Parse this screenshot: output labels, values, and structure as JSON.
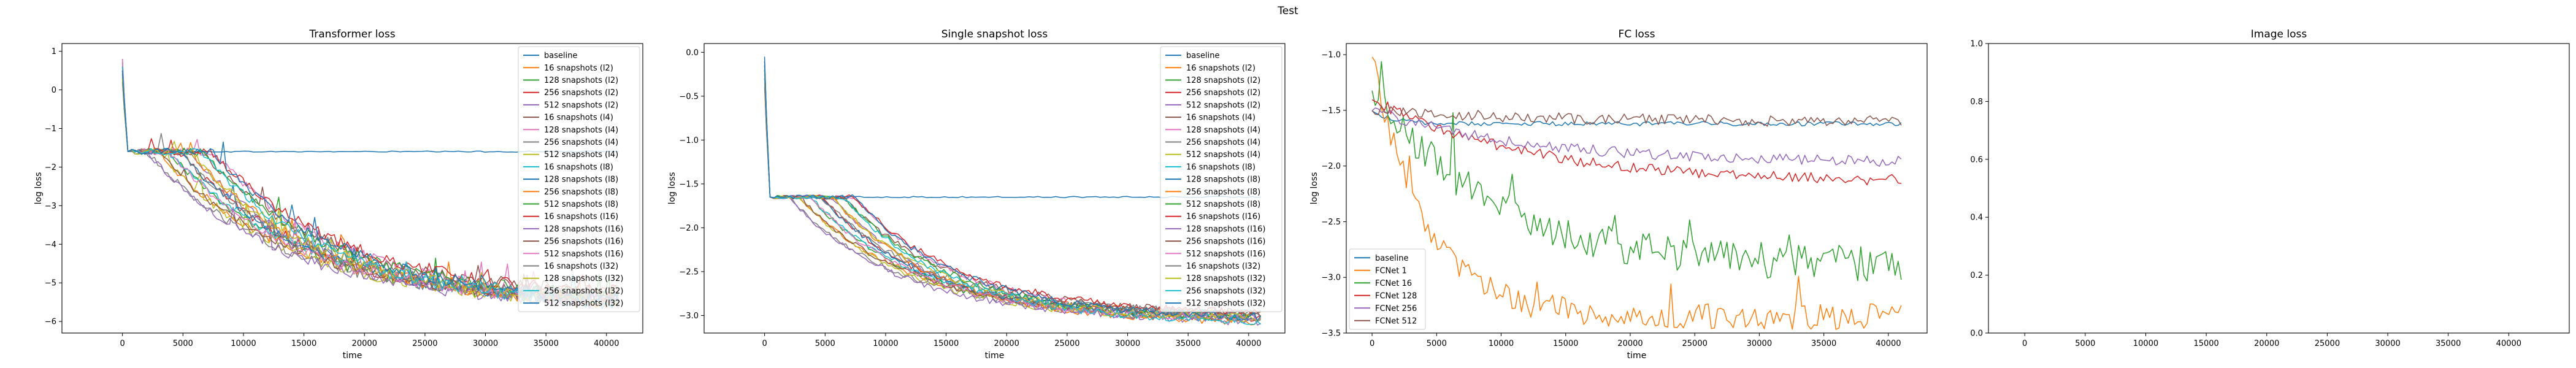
{
  "figure": {
    "suptitle": "Test"
  },
  "colors": {
    "tab10": [
      "#1f77b4",
      "#ff7f0e",
      "#2ca02c",
      "#d62728",
      "#9467bd",
      "#8c564b",
      "#e377c2",
      "#7f7f7f",
      "#bcbd22",
      "#17becf"
    ]
  },
  "chart_data": [
    {
      "type": "line",
      "title": "Transformer loss",
      "xlabel": "time",
      "ylabel": "log loss",
      "xlim": [
        -5000,
        43000
      ],
      "ylim": [
        -6.3,
        1.2
      ],
      "xticks": [
        0,
        5000,
        10000,
        15000,
        20000,
        25000,
        30000,
        35000,
        40000
      ],
      "yticks": [
        -6,
        -5,
        -4,
        -3,
        -2,
        -1,
        0,
        1
      ],
      "ytick_labels": [
        "−6",
        "−5",
        "−4",
        "−3",
        "−2",
        "−1",
        "0",
        "1"
      ],
      "legend_loc": "upper-right",
      "grid": false,
      "note": "All series start near 0.8 at t=0, drop to about -1.6 by t~500; baseline stays flat near -1.6; snapshot runs decay toward about -5.6 by t=40000 with noise.",
      "series": [
        {
          "name": "baseline",
          "color_index": 0,
          "start": 0.8,
          "plateau": -1.6,
          "end": -1.6
        },
        {
          "name": "16 snapshots (l2)",
          "color_index": 1,
          "start": 0.7,
          "plateau": -1.6,
          "end": -5.5
        },
        {
          "name": "128 snapshots (l2)",
          "color_index": 2,
          "start": 0.6,
          "plateau": -1.6,
          "end": -5.6
        },
        {
          "name": "256 snapshots (l2)",
          "color_index": 3,
          "start": 0.5,
          "plateau": -1.6,
          "end": -5.6
        },
        {
          "name": "512 snapshots (l2)",
          "color_index": 4,
          "start": 0.4,
          "plateau": -1.6,
          "end": -5.7
        },
        {
          "name": "16 snapshots (l4)",
          "color_index": 5,
          "start": 0.3,
          "plateau": -1.6,
          "end": -5.4
        },
        {
          "name": "128 snapshots (l4)",
          "color_index": 6,
          "start": 0.8,
          "plateau": -1.6,
          "end": -5.6
        },
        {
          "name": "256 snapshots (l4)",
          "color_index": 7,
          "start": 0.2,
          "plateau": -1.6,
          "end": -5.5
        },
        {
          "name": "512 snapshots (l4)",
          "color_index": 8,
          "start": 0.6,
          "plateau": -1.6,
          "end": -5.6
        },
        {
          "name": "16 snapshots (l8)",
          "color_index": 9,
          "start": 0.5,
          "plateau": -1.6,
          "end": -5.5
        },
        {
          "name": "128 snapshots (l8)",
          "color_index": 0,
          "start": 0.7,
          "plateau": -1.6,
          "end": -5.6
        },
        {
          "name": "256 snapshots (l8)",
          "color_index": 1,
          "start": 0.4,
          "plateau": -1.6,
          "end": -5.7
        },
        {
          "name": "512 snapshots (l8)",
          "color_index": 2,
          "start": 0.3,
          "plateau": -1.6,
          "end": -5.5
        },
        {
          "name": "16 snapshots (l16)",
          "color_index": 3,
          "start": 0.6,
          "plateau": -1.6,
          "end": -5.4
        },
        {
          "name": "128 snapshots (l16)",
          "color_index": 4,
          "start": 0.5,
          "plateau": -1.6,
          "end": -5.6
        },
        {
          "name": "256 snapshots (l16)",
          "color_index": 5,
          "start": 0.2,
          "plateau": -1.6,
          "end": -5.5
        },
        {
          "name": "512 snapshots (l16)",
          "color_index": 6,
          "start": 0.7,
          "plateau": -1.6,
          "end": -5.6
        },
        {
          "name": "16 snapshots (l32)",
          "color_index": 7,
          "start": 0.4,
          "plateau": -1.6,
          "end": -5.5
        },
        {
          "name": "128 snapshots (l32)",
          "color_index": 8,
          "start": 0.3,
          "plateau": -1.6,
          "end": -5.6
        },
        {
          "name": "256 snapshots (l32)",
          "color_index": 9,
          "start": 0.6,
          "plateau": -1.6,
          "end": -5.7
        },
        {
          "name": "512 snapshots (l32)",
          "color_index": 0,
          "start": 0.5,
          "plateau": -1.6,
          "end": -5.6
        }
      ]
    },
    {
      "type": "line",
      "title": "Single snapshot loss",
      "xlabel": "time",
      "ylabel": "log loss",
      "xlim": [
        -5000,
        43000
      ],
      "ylim": [
        -3.2,
        0.1
      ],
      "xticks": [
        0,
        5000,
        10000,
        15000,
        20000,
        25000,
        30000,
        35000,
        40000
      ],
      "yticks": [
        -3.0,
        -2.5,
        -2.0,
        -1.5,
        -1.0,
        -0.5,
        0.0
      ],
      "ytick_labels": [
        "−3.0",
        "−2.5",
        "−2.0",
        "−1.5",
        "−1.0",
        "−0.5",
        "0.0"
      ],
      "legend_loc": "upper-right",
      "grid": false,
      "note": "Series start near 0.0 at t=0, drop to about -1.65 by t~500; baseline stays flat near -1.65; snapshot runs decay toward about -3.05 by t=40000.",
      "series": [
        {
          "name": "baseline",
          "color_index": 0,
          "start": -0.05,
          "plateau": -1.65,
          "end": -1.65
        },
        {
          "name": "16 snapshots (l2)",
          "color_index": 1,
          "start": -0.1,
          "plateau": -1.65,
          "end": -3.0
        },
        {
          "name": "128 snapshots (l2)",
          "color_index": 2,
          "start": -0.2,
          "plateau": -1.65,
          "end": -3.05
        },
        {
          "name": "256 snapshots (l2)",
          "color_index": 3,
          "start": -0.3,
          "plateau": -1.65,
          "end": -3.05
        },
        {
          "name": "512 snapshots (l2)",
          "color_index": 4,
          "start": -0.15,
          "plateau": -1.65,
          "end": -3.1
        },
        {
          "name": "16 snapshots (l4)",
          "color_index": 5,
          "start": -0.4,
          "plateau": -1.65,
          "end": -3.0
        },
        {
          "name": "128 snapshots (l4)",
          "color_index": 6,
          "start": -0.1,
          "plateau": -1.65,
          "end": -3.05
        },
        {
          "name": "256 snapshots (l4)",
          "color_index": 7,
          "start": -0.25,
          "plateau": -1.65,
          "end": -3.0
        },
        {
          "name": "512 snapshots (l4)",
          "color_index": 8,
          "start": -0.2,
          "plateau": -1.65,
          "end": -3.05
        },
        {
          "name": "16 snapshots (l8)",
          "color_index": 9,
          "start": -0.3,
          "plateau": -1.65,
          "end": -3.0
        },
        {
          "name": "128 snapshots (l8)",
          "color_index": 0,
          "start": -0.1,
          "plateau": -1.65,
          "end": -3.05
        },
        {
          "name": "256 snapshots (l8)",
          "color_index": 1,
          "start": -0.35,
          "plateau": -1.65,
          "end": -3.1
        },
        {
          "name": "512 snapshots (l8)",
          "color_index": 2,
          "start": -0.2,
          "plateau": -1.65,
          "end": -3.05
        },
        {
          "name": "16 snapshots (l16)",
          "color_index": 3,
          "start": -0.15,
          "plateau": -1.65,
          "end": -3.0
        },
        {
          "name": "128 snapshots (l16)",
          "color_index": 4,
          "start": -0.3,
          "plateau": -1.65,
          "end": -3.05
        },
        {
          "name": "256 snapshots (l16)",
          "color_index": 5,
          "start": -0.2,
          "plateau": -1.65,
          "end": -3.0
        },
        {
          "name": "512 snapshots (l16)",
          "color_index": 6,
          "start": -0.1,
          "plateau": -1.65,
          "end": -3.05
        },
        {
          "name": "16 snapshots (l32)",
          "color_index": 7,
          "start": -0.25,
          "plateau": -1.65,
          "end": -3.0
        },
        {
          "name": "128 snapshots (l32)",
          "color_index": 8,
          "start": -0.2,
          "plateau": -1.65,
          "end": -3.05
        },
        {
          "name": "256 snapshots (l32)",
          "color_index": 9,
          "start": -0.15,
          "plateau": -1.65,
          "end": -3.1
        },
        {
          "name": "512 snapshots (l32)",
          "color_index": 0,
          "start": -0.1,
          "plateau": -1.65,
          "end": -3.05
        }
      ]
    },
    {
      "type": "line",
      "title": "FC loss",
      "xlabel": "time",
      "ylabel": "log loss",
      "xlim": [
        -2000,
        43000
      ],
      "ylim": [
        -3.5,
        -0.9
      ],
      "xticks": [
        0,
        5000,
        10000,
        15000,
        20000,
        25000,
        30000,
        35000,
        40000
      ],
      "yticks": [
        -3.5,
        -3.0,
        -2.5,
        -2.0,
        -1.5,
        -1.0
      ],
      "ytick_labels": [
        "−3.5",
        "−3.0",
        "−2.5",
        "−2.0",
        "−1.5",
        "−1.0"
      ],
      "legend_loc": "lower-left",
      "grid": false,
      "series": [
        {
          "name": "baseline",
          "color_index": 0,
          "start": -1.5,
          "end": -1.62
        },
        {
          "name": "FCNet 1",
          "color_index": 1,
          "start": -1.0,
          "end": -3.35
        },
        {
          "name": "FCNet 16",
          "color_index": 2,
          "start": -1.3,
          "end": -2.9
        },
        {
          "name": "FCNet 128",
          "color_index": 3,
          "start": -1.4,
          "end": -2.15
        },
        {
          "name": "FCNet 256",
          "color_index": 4,
          "start": -1.5,
          "end": -1.97
        },
        {
          "name": "FCNet 512",
          "color_index": 5,
          "start": -1.5,
          "end": -1.6
        }
      ]
    },
    {
      "type": "line",
      "title": "Image loss",
      "xlabel": "",
      "ylabel": "",
      "xlim": [
        -3000,
        45000
      ],
      "ylim": [
        0.0,
        1.0
      ],
      "xticks": [
        0,
        5000,
        10000,
        15000,
        20000,
        25000,
        30000,
        35000,
        40000
      ],
      "yticks": [
        0.0,
        0.2,
        0.4,
        0.6,
        0.8,
        1.0
      ],
      "ytick_labels": [
        "0.0",
        "0.2",
        "0.4",
        "0.6",
        "0.8",
        "1.0"
      ],
      "legend_loc": "upper-right",
      "grid": false,
      "series": []
    }
  ]
}
